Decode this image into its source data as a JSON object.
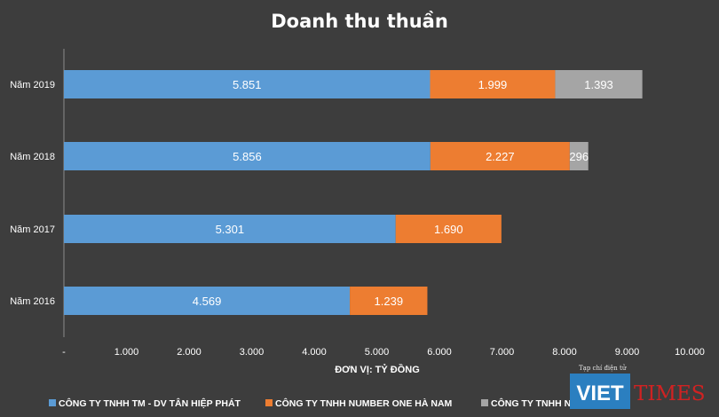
{
  "chart_data": {
    "type": "bar",
    "orientation": "horizontal",
    "stacked": true,
    "title": "Doanh thu thuần",
    "xlabel": "ĐƠN VỊ: TỶ ĐỒNG",
    "ylabel": "",
    "xlim": [
      0,
      10000
    ],
    "x_ticks": [
      "-",
      "1.000",
      "2.000",
      "3.000",
      "4.000",
      "5.000",
      "6.000",
      "7.000",
      "8.000",
      "9.000",
      "10.000"
    ],
    "categories": [
      "Năm 2019",
      "Năm 2018",
      "Năm 2017",
      "Năm 2016"
    ],
    "series": [
      {
        "name": "CÔNG TY TNHH TM - DV TÂN HIỆP PHÁT",
        "color": "#5b9bd5",
        "values": [
          5851,
          5856,
          5301,
          4569
        ],
        "labels": [
          "5.851",
          "5.856",
          "5.301",
          "4.569"
        ]
      },
      {
        "name": "CÔNG TY TNHH NUMBER ONE HÀ NAM",
        "color": "#ed7d31",
        "values": [
          1999,
          2227,
          1690,
          1239
        ],
        "labels": [
          "1.999",
          "2.227",
          "1.690",
          "1.239"
        ]
      },
      {
        "name": "CÔNG TY TNHH NUMBER ONE",
        "color": "#a5a5a5",
        "values": [
          1393,
          296,
          0,
          0
        ],
        "labels": [
          "1.393",
          "296",
          "",
          ""
        ]
      }
    ],
    "grid": false,
    "legend_position": "bottom"
  },
  "watermark": {
    "tagline": "Tạp chí điện tử",
    "brand_a": "VIET",
    "brand_b": "TIMES"
  },
  "colors": {
    "background": "#3d3d3d",
    "text": "#ffffff",
    "axis": "#8a8a8a",
    "watermark_blue": "#2b7fc0",
    "watermark_red": "#e02020"
  }
}
